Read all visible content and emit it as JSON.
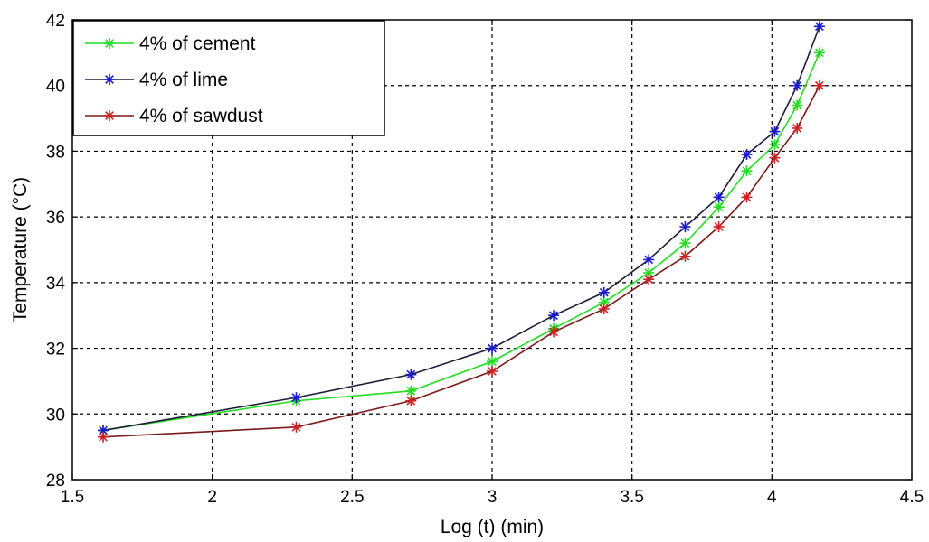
{
  "chart_data": {
    "type": "line",
    "title": "",
    "xlabel": "Log (t) (min)",
    "ylabel": "Temperature (°C)",
    "xlim": [
      1.5,
      4.5
    ],
    "ylim": [
      28,
      42
    ],
    "xticks": [
      1.5,
      2,
      2.5,
      3,
      3.5,
      4,
      4.5
    ],
    "xtick_labels": [
      "1.5",
      "2",
      "2.5",
      "3",
      "3.5",
      "4",
      "4.5"
    ],
    "yticks": [
      28,
      30,
      32,
      34,
      36,
      38,
      40,
      42
    ],
    "ytick_labels": [
      "28",
      "30",
      "32",
      "34",
      "36",
      "38",
      "40",
      "42"
    ],
    "grid": true,
    "legend_position": "top-left",
    "x": [
      1.61,
      2.3,
      2.71,
      3.0,
      3.22,
      3.4,
      3.56,
      3.69,
      3.81,
      3.91,
      4.01,
      4.09,
      4.17
    ],
    "series": [
      {
        "name": "4% of cement",
        "color": "#22dd22",
        "marker": "asterisk",
        "values": [
          29.5,
          30.4,
          30.7,
          31.6,
          32.6,
          33.4,
          34.3,
          35.2,
          36.3,
          37.4,
          38.2,
          39.4,
          41.0
        ]
      },
      {
        "name": "4% of lime",
        "color": "#1c1c3a",
        "marker_color": "#1a1acc",
        "marker": "asterisk",
        "values": [
          29.5,
          30.5,
          31.2,
          32.0,
          33.0,
          33.7,
          34.7,
          35.7,
          36.6,
          37.9,
          38.6,
          40.0,
          41.8
        ]
      },
      {
        "name": "4% of sawdust",
        "color": "#7a1a1a",
        "marker_color": "#cc2222",
        "marker": "asterisk",
        "values": [
          29.3,
          29.6,
          30.4,
          31.3,
          32.5,
          33.2,
          34.1,
          34.8,
          35.7,
          36.6,
          37.8,
          38.7,
          40.0
        ]
      }
    ]
  }
}
